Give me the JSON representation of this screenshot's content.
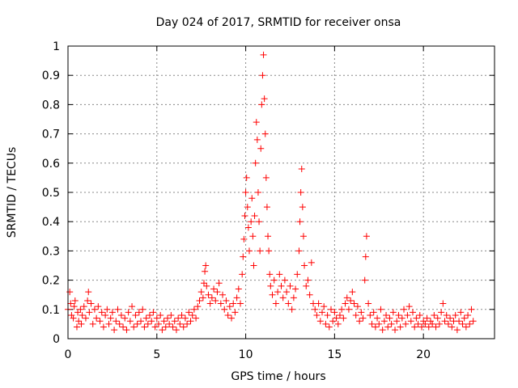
{
  "chart_data": {
    "type": "scatter",
    "title": "Day 024 of 2017, SRMTID for receiver onsa",
    "xlabel": "GPS time / hours",
    "ylabel": "SRMTID / TECUs",
    "xlim": [
      0,
      24
    ],
    "ylim": [
      0,
      1
    ],
    "x_ticks": [
      0,
      5,
      10,
      15,
      20
    ],
    "x_tick_labels": [
      "0",
      "5",
      "10",
      "15",
      "20"
    ],
    "y_ticks": [
      0,
      0.1,
      0.2,
      0.3,
      0.4,
      0.5,
      0.6,
      0.7,
      0.8,
      0.9,
      1
    ],
    "y_tick_labels": [
      "0",
      "0.1",
      "0.2",
      "0.3",
      "0.4",
      "0.5",
      "0.6",
      "0.7",
      "0.8",
      "0.9",
      "1"
    ],
    "grid": true,
    "marker": "+",
    "color": "#ff0000",
    "series": [
      {
        "name": "SRMTID",
        "points": [
          [
            0.0,
            0.1
          ],
          [
            0.1,
            0.16
          ],
          [
            0.15,
            0.12
          ],
          [
            0.2,
            0.08
          ],
          [
            0.3,
            0.07
          ],
          [
            0.35,
            0.11
          ],
          [
            0.4,
            0.13
          ],
          [
            0.5,
            0.04
          ],
          [
            0.55,
            0.09
          ],
          [
            0.6,
            0.06
          ],
          [
            0.7,
            0.1
          ],
          [
            0.75,
            0.05
          ],
          [
            0.8,
            0.08
          ],
          [
            0.9,
            0.11
          ],
          [
            1.0,
            0.07
          ],
          [
            1.1,
            0.13
          ],
          [
            1.15,
            0.16
          ],
          [
            1.2,
            0.09
          ],
          [
            1.3,
            0.12
          ],
          [
            1.4,
            0.05
          ],
          [
            1.5,
            0.1
          ],
          [
            1.6,
            0.07
          ],
          [
            1.7,
            0.11
          ],
          [
            1.8,
            0.06
          ],
          [
            1.9,
            0.09
          ],
          [
            2.0,
            0.04
          ],
          [
            2.1,
            0.08
          ],
          [
            2.2,
            0.1
          ],
          [
            2.3,
            0.05
          ],
          [
            2.4,
            0.07
          ],
          [
            2.5,
            0.09
          ],
          [
            2.6,
            0.03
          ],
          [
            2.7,
            0.06
          ],
          [
            2.8,
            0.1
          ],
          [
            2.9,
            0.05
          ],
          [
            3.0,
            0.08
          ],
          [
            3.1,
            0.04
          ],
          [
            3.2,
            0.07
          ],
          [
            3.3,
            0.03
          ],
          [
            3.4,
            0.09
          ],
          [
            3.5,
            0.06
          ],
          [
            3.6,
            0.11
          ],
          [
            3.7,
            0.04
          ],
          [
            3.8,
            0.08
          ],
          [
            3.9,
            0.05
          ],
          [
            4.0,
            0.09
          ],
          [
            4.1,
            0.06
          ],
          [
            4.2,
            0.1
          ],
          [
            4.3,
            0.04
          ],
          [
            4.4,
            0.07
          ],
          [
            4.5,
            0.05
          ],
          [
            4.6,
            0.08
          ],
          [
            4.7,
            0.06
          ],
          [
            4.8,
            0.09
          ],
          [
            4.9,
            0.04
          ],
          [
            5.0,
            0.07
          ],
          [
            5.1,
            0.05
          ],
          [
            5.2,
            0.08
          ],
          [
            5.3,
            0.03
          ],
          [
            5.4,
            0.06
          ],
          [
            5.5,
            0.04
          ],
          [
            5.6,
            0.07
          ],
          [
            5.7,
            0.05
          ],
          [
            5.8,
            0.08
          ],
          [
            5.9,
            0.04
          ],
          [
            6.0,
            0.06
          ],
          [
            6.1,
            0.03
          ],
          [
            6.2,
            0.07
          ],
          [
            6.3,
            0.05
          ],
          [
            6.4,
            0.08
          ],
          [
            6.5,
            0.04
          ],
          [
            6.6,
            0.07
          ],
          [
            6.7,
            0.05
          ],
          [
            6.8,
            0.09
          ],
          [
            6.9,
            0.06
          ],
          [
            7.0,
            0.08
          ],
          [
            7.1,
            0.1
          ],
          [
            7.2,
            0.07
          ],
          [
            7.3,
            0.11
          ],
          [
            7.4,
            0.13
          ],
          [
            7.5,
            0.16
          ],
          [
            7.6,
            0.14
          ],
          [
            7.65,
            0.19
          ],
          [
            7.7,
            0.23
          ],
          [
            7.75,
            0.25
          ],
          [
            7.8,
            0.18
          ],
          [
            7.9,
            0.15
          ],
          [
            8.0,
            0.12
          ],
          [
            8.1,
            0.14
          ],
          [
            8.2,
            0.17
          ],
          [
            8.3,
            0.13
          ],
          [
            8.4,
            0.16
          ],
          [
            8.5,
            0.19
          ],
          [
            8.6,
            0.12
          ],
          [
            8.7,
            0.15
          ],
          [
            8.8,
            0.1
          ],
          [
            8.9,
            0.13
          ],
          [
            9.0,
            0.08
          ],
          [
            9.1,
            0.11
          ],
          [
            9.2,
            0.07
          ],
          [
            9.3,
            0.12
          ],
          [
            9.4,
            0.09
          ],
          [
            9.5,
            0.14
          ],
          [
            9.6,
            0.17
          ],
          [
            9.7,
            0.12
          ],
          [
            9.8,
            0.22
          ],
          [
            9.85,
            0.28
          ],
          [
            9.9,
            0.34
          ],
          [
            9.95,
            0.42
          ],
          [
            10.0,
            0.5
          ],
          [
            10.05,
            0.55
          ],
          [
            10.1,
            0.45
          ],
          [
            10.15,
            0.38
          ],
          [
            10.2,
            0.3
          ],
          [
            10.3,
            0.4
          ],
          [
            10.35,
            0.48
          ],
          [
            10.4,
            0.35
          ],
          [
            10.45,
            0.25
          ],
          [
            10.5,
            0.42
          ],
          [
            10.55,
            0.6
          ],
          [
            10.6,
            0.74
          ],
          [
            10.65,
            0.68
          ],
          [
            10.7,
            0.5
          ],
          [
            10.75,
            0.4
          ],
          [
            10.8,
            0.3
          ],
          [
            10.85,
            0.65
          ],
          [
            10.9,
            0.8
          ],
          [
            10.95,
            0.9
          ],
          [
            11.0,
            0.97
          ],
          [
            11.05,
            0.82
          ],
          [
            11.1,
            0.7
          ],
          [
            11.15,
            0.55
          ],
          [
            11.2,
            0.45
          ],
          [
            11.25,
            0.35
          ],
          [
            11.3,
            0.3
          ],
          [
            11.35,
            0.22
          ],
          [
            11.4,
            0.18
          ],
          [
            11.5,
            0.15
          ],
          [
            11.6,
            0.2
          ],
          [
            11.7,
            0.12
          ],
          [
            11.8,
            0.16
          ],
          [
            11.9,
            0.22
          ],
          [
            12.0,
            0.18
          ],
          [
            12.1,
            0.14
          ],
          [
            12.2,
            0.2
          ],
          [
            12.3,
            0.16
          ],
          [
            12.4,
            0.12
          ],
          [
            12.5,
            0.18
          ],
          [
            12.6,
            0.1
          ],
          [
            12.7,
            0.14
          ],
          [
            12.8,
            0.17
          ],
          [
            12.9,
            0.22
          ],
          [
            13.0,
            0.3
          ],
          [
            13.05,
            0.4
          ],
          [
            13.1,
            0.5
          ],
          [
            13.15,
            0.58
          ],
          [
            13.2,
            0.45
          ],
          [
            13.25,
            0.35
          ],
          [
            13.3,
            0.25
          ],
          [
            13.4,
            0.18
          ],
          [
            13.5,
            0.2
          ],
          [
            13.6,
            0.15
          ],
          [
            13.7,
            0.26
          ],
          [
            13.8,
            0.12
          ],
          [
            13.9,
            0.1
          ],
          [
            14.0,
            0.08
          ],
          [
            14.1,
            0.12
          ],
          [
            14.2,
            0.06
          ],
          [
            14.3,
            0.09
          ],
          [
            14.4,
            0.11
          ],
          [
            14.5,
            0.05
          ],
          [
            14.6,
            0.08
          ],
          [
            14.7,
            0.04
          ],
          [
            14.8,
            0.1
          ],
          [
            14.9,
            0.06
          ],
          [
            15.0,
            0.09
          ],
          [
            15.1,
            0.07
          ],
          [
            15.2,
            0.05
          ],
          [
            15.3,
            0.08
          ],
          [
            15.4,
            0.1
          ],
          [
            15.5,
            0.07
          ],
          [
            15.6,
            0.12
          ],
          [
            15.7,
            0.14
          ],
          [
            15.8,
            0.1
          ],
          [
            15.9,
            0.13
          ],
          [
            16.0,
            0.16
          ],
          [
            16.1,
            0.12
          ],
          [
            16.2,
            0.08
          ],
          [
            16.3,
            0.11
          ],
          [
            16.4,
            0.06
          ],
          [
            16.5,
            0.09
          ],
          [
            16.6,
            0.07
          ],
          [
            16.7,
            0.2
          ],
          [
            16.75,
            0.28
          ],
          [
            16.8,
            0.35
          ],
          [
            16.9,
            0.12
          ],
          [
            17.0,
            0.08
          ],
          [
            17.1,
            0.05
          ],
          [
            17.2,
            0.09
          ],
          [
            17.3,
            0.04
          ],
          [
            17.4,
            0.07
          ],
          [
            17.5,
            0.05
          ],
          [
            17.6,
            0.1
          ],
          [
            17.7,
            0.03
          ],
          [
            17.8,
            0.06
          ],
          [
            17.9,
            0.08
          ],
          [
            18.0,
            0.04
          ],
          [
            18.1,
            0.07
          ],
          [
            18.2,
            0.05
          ],
          [
            18.3,
            0.09
          ],
          [
            18.4,
            0.03
          ],
          [
            18.5,
            0.06
          ],
          [
            18.6,
            0.08
          ],
          [
            18.7,
            0.04
          ],
          [
            18.8,
            0.07
          ],
          [
            18.9,
            0.1
          ],
          [
            19.0,
            0.05
          ],
          [
            19.1,
            0.08
          ],
          [
            19.2,
            0.11
          ],
          [
            19.3,
            0.06
          ],
          [
            19.4,
            0.09
          ],
          [
            19.5,
            0.04
          ],
          [
            19.6,
            0.07
          ],
          [
            19.7,
            0.05
          ],
          [
            19.8,
            0.08
          ],
          [
            19.9,
            0.04
          ],
          [
            20.0,
            0.06
          ],
          [
            20.1,
            0.05
          ],
          [
            20.2,
            0.07
          ],
          [
            20.3,
            0.04
          ],
          [
            20.4,
            0.06
          ],
          [
            20.5,
            0.05
          ],
          [
            20.6,
            0.08
          ],
          [
            20.7,
            0.04
          ],
          [
            20.8,
            0.07
          ],
          [
            20.9,
            0.05
          ],
          [
            21.0,
            0.09
          ],
          [
            21.1,
            0.12
          ],
          [
            21.2,
            0.06
          ],
          [
            21.3,
            0.08
          ],
          [
            21.4,
            0.05
          ],
          [
            21.5,
            0.07
          ],
          [
            21.6,
            0.04
          ],
          [
            21.7,
            0.06
          ],
          [
            21.8,
            0.08
          ],
          [
            21.9,
            0.03
          ],
          [
            22.0,
            0.06
          ],
          [
            22.1,
            0.09
          ],
          [
            22.2,
            0.05
          ],
          [
            22.3,
            0.07
          ],
          [
            22.4,
            0.04
          ],
          [
            22.5,
            0.08
          ],
          [
            22.6,
            0.05
          ],
          [
            22.7,
            0.1
          ],
          [
            22.8,
            0.06
          ]
        ]
      }
    ]
  }
}
